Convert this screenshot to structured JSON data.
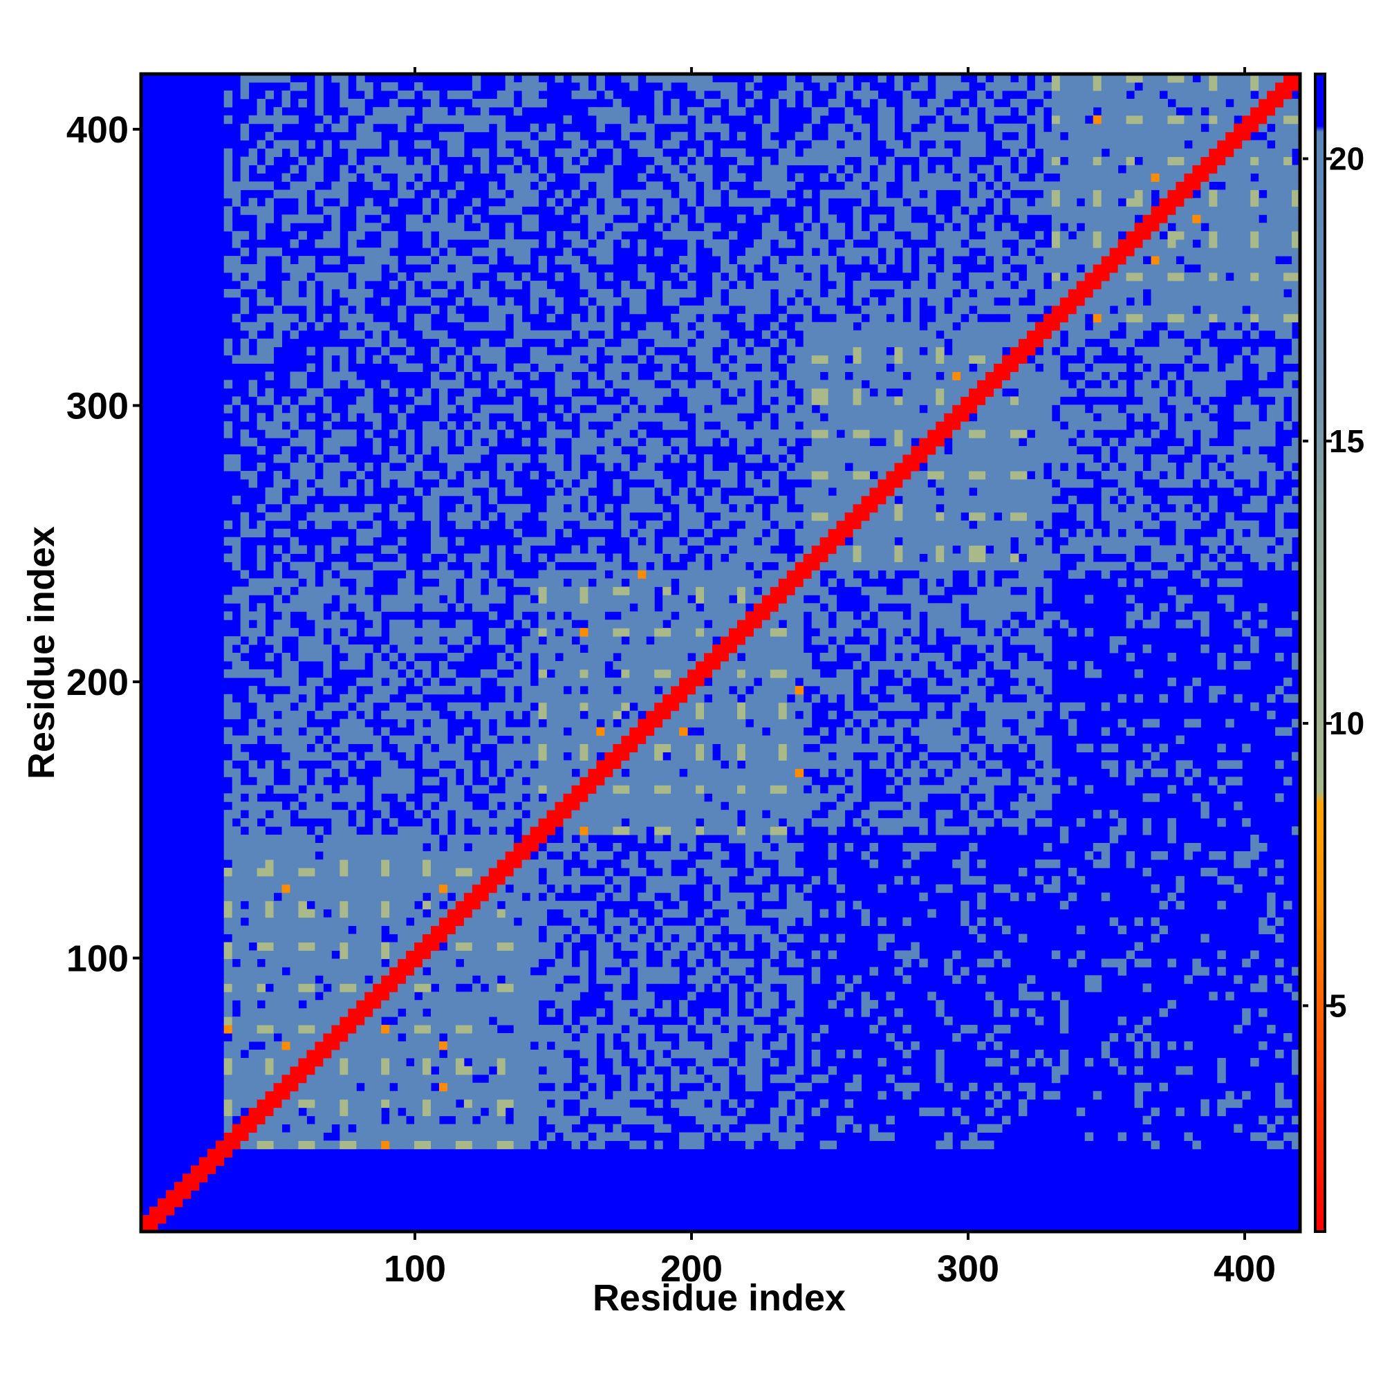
{
  "chart_data": {
    "type": "heatmap",
    "title": "",
    "xlabel": "Residue index",
    "ylabel": "Residue index",
    "xlim": [
      1,
      420
    ],
    "ylim": [
      1,
      420
    ],
    "x_ticks": [
      100,
      200,
      300,
      400
    ],
    "y_ticks": [
      100,
      200,
      300,
      400
    ],
    "x_tick_labels": [
      "100",
      "200",
      "300",
      "400"
    ],
    "y_tick_labels": [
      "100",
      "200",
      "300",
      "400"
    ],
    "colorbar": {
      "range": [
        1,
        21.5
      ],
      "ticks": [
        5,
        10,
        15,
        20
      ],
      "tick_labels": [
        "5",
        "10",
        "15",
        "20"
      ],
      "colors": {
        "low": "#ff0000",
        "mid_low": "#ff8c00",
        "mid": "#aab98a",
        "mid_high": "#5b86bb",
        "high": "#0000ff"
      }
    },
    "description_of_structure": {
      "diagonal": "distance ~1-3 (red) along residue i == j",
      "domains": [
        {
          "start": 30,
          "end": 145
        },
        {
          "start": 145,
          "end": 240
        },
        {
          "start": 240,
          "end": 330
        },
        {
          "start": 330,
          "end": 420
        }
      ]
    }
  }
}
